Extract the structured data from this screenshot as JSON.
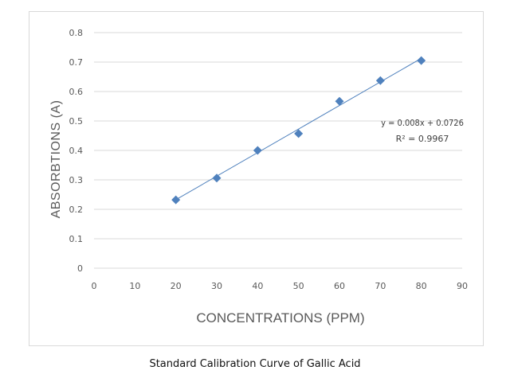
{
  "caption": "Standard Calibration Curve of Gallic Acid",
  "chart_data": {
    "type": "scatter",
    "xlabel": "CONCENTRATIONS (PPM)",
    "ylabel": "ABSORBTIONS (A)",
    "xlim": [
      0,
      90
    ],
    "ylim": [
      0,
      0.8
    ],
    "x_ticks": [
      "0",
      "10",
      "20",
      "30",
      "40",
      "50",
      "60",
      "70",
      "80",
      "90"
    ],
    "y_ticks": [
      "0",
      "0.1",
      "0.2",
      "0.3",
      "0.4",
      "0.5",
      "0.6",
      "0.7",
      "0.8"
    ],
    "grid": "horizontal",
    "series": [
      {
        "x": [
          20,
          30,
          40,
          50,
          60,
          70,
          80
        ],
        "y": [
          0.232,
          0.306,
          0.4,
          0.457,
          0.567,
          0.637,
          0.705
        ],
        "marker": "diamond",
        "color": "#4f81bd"
      }
    ],
    "trendline": {
      "slope": 0.008,
      "intercept": 0.0726,
      "x_range": [
        20,
        80
      ],
      "color": "#4f81bd"
    },
    "annotations": {
      "equation": "y = 0.008x + 0.0726",
      "r_squared": "R² = 0.9967"
    }
  }
}
